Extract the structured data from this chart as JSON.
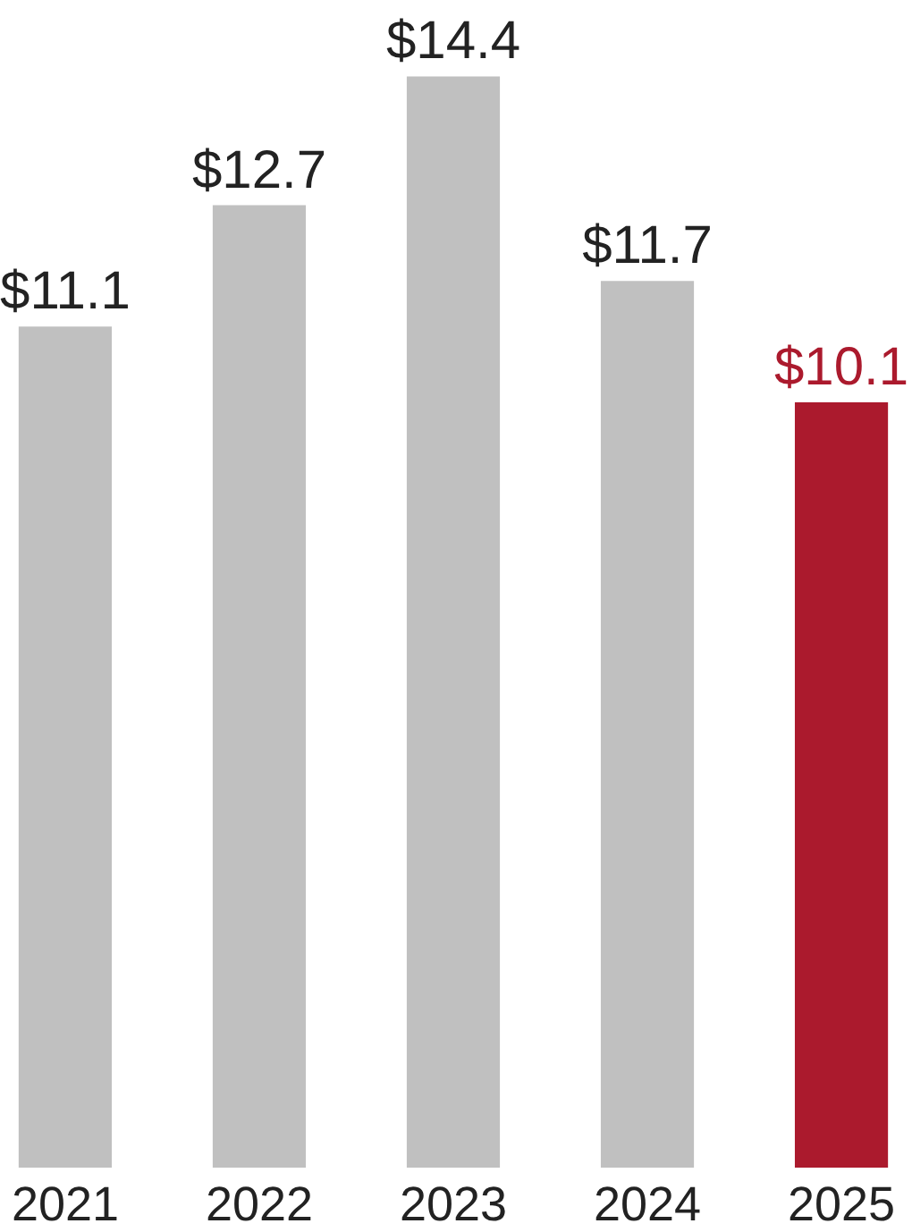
{
  "chart_data": {
    "type": "bar",
    "categories": [
      "2021",
      "2022",
      "2023",
      "2024",
      "2025"
    ],
    "values": [
      11.1,
      12.7,
      14.4,
      11.7,
      10.1
    ],
    "colors": [
      "#c0c0c0",
      "#c0c0c0",
      "#c0c0c0",
      "#c0c0c0",
      "#ab1a2d"
    ],
    "value_labels": [
      "$11.1",
      "$12.7",
      "$14.4",
      "$11.7",
      "$10.1"
    ],
    "grid": false
  }
}
